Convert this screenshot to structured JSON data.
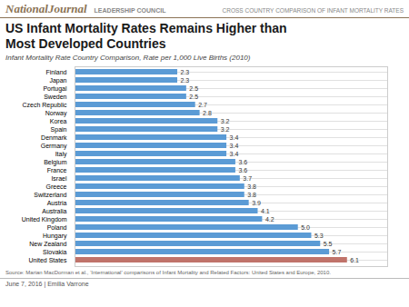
{
  "chart_data": {
    "type": "bar",
    "orientation": "horizontal",
    "title": "US Infant Mortality Rates Remains Higher than\nMost Developed Countries",
    "subtitle": "Infant Mortality Rate Country Comparison, Rate per 1,000 Live Births (2010)",
    "annotations": [
      "NationalJournal",
      "LEADERSHIP COUNCIL",
      "CROSS COUNTRY COMPARISON OF INFANT MORTALITY RATES",
      "Source: Marian MacDorman et al., ‘International’ comparisons of Infant Mortality and Related Factors: United States and Europe, 2010.",
      "June 7, 2016  |  Emilia Varrone"
    ],
    "categories": [
      "Finland",
      "Japan",
      "Portugal",
      "Sweden",
      "Czech Republic",
      "Norway",
      "Korea",
      "Spain",
      "Denmark",
      "Germany",
      "Italy",
      "Belgium",
      "France",
      "Israel",
      "Greece",
      "Switzerland",
      "Austria",
      "Australia",
      "United Kingdom",
      "Poland",
      "Hungary",
      "New Zealand",
      "Slovakia",
      "United States"
    ],
    "values": [
      2.3,
      2.3,
      2.5,
      2.5,
      2.7,
      2.8,
      3.2,
      3.2,
      3.4,
      3.4,
      3.4,
      3.6,
      3.6,
      3.7,
      3.8,
      3.8,
      3.9,
      4.1,
      4.2,
      5.0,
      5.3,
      5.5,
      5.7,
      6.1
    ],
    "value_labels": [
      "2.3",
      "2.3",
      "2.5",
      "2.5",
      "2.7",
      "2.8",
      "3.2",
      "3.2",
      "3.4",
      "3.4",
      "3.4",
      "3.6",
      "3.6",
      "3.7",
      "3.8",
      "3.8",
      "3.9",
      "4.1",
      "4.2",
      "5.0",
      "5.3",
      "5.5",
      "5.7",
      "6.1"
    ],
    "colors": [
      "#5b9bd5",
      "#5b9bd5",
      "#5b9bd5",
      "#5b9bd5",
      "#5b9bd5",
      "#5b9bd5",
      "#5b9bd5",
      "#5b9bd5",
      "#5b9bd5",
      "#5b9bd5",
      "#5b9bd5",
      "#5b9bd5",
      "#5b9bd5",
      "#5b9bd5",
      "#5b9bd5",
      "#5b9bd5",
      "#5b9bd5",
      "#5b9bd5",
      "#5b9bd5",
      "#5b9bd5",
      "#5b9bd5",
      "#5b9bd5",
      "#5b9bd5",
      "#c0736a"
    ],
    "xlim": [
      0,
      7
    ],
    "data_labels": true,
    "tick_labels": "y",
    "grid": true
  }
}
